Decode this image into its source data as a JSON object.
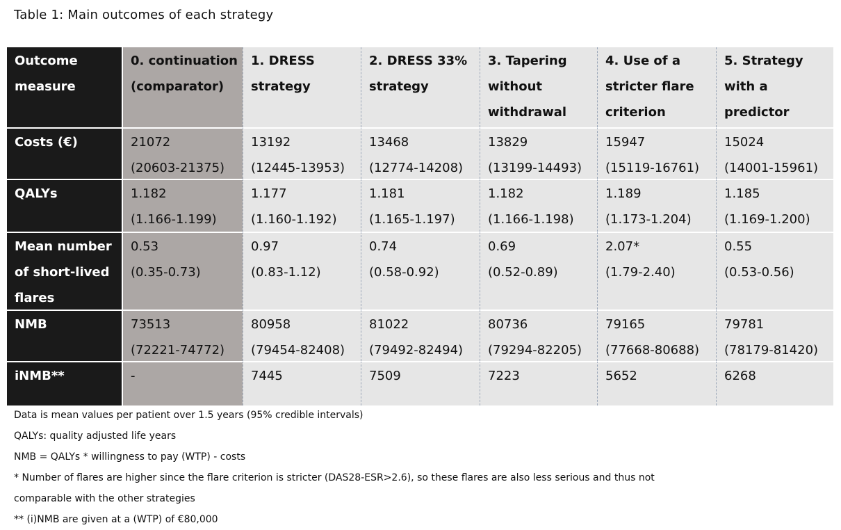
{
  "title": "Table 1: Main outcomes of each strategy",
  "table": {
    "headers": [
      "Outcome\nmeasure",
      "0. continuation\n(comparator)",
      "1. DRESS\nstrategy",
      "2. DRESS 33%\nstrategy",
      "3. Tapering\nwithout\nwithdrawal",
      "4. Use of a\nstricter flare\ncriterion",
      "5. Strategy\nwith a\npredictor"
    ],
    "rows": [
      {
        "label": "Costs (€)",
        "cells": [
          "21072\n(20603-21375)",
          "13192\n(12445-13953)",
          "13468\n(12774-14208)",
          "13829\n(13199-14493)",
          "15947\n(15119-16761)",
          "15024\n(14001-15961)"
        ]
      },
      {
        "label": "QALYs",
        "cells": [
          "1.182\n(1.166-1.199)",
          "1.177\n(1.160-1.192)",
          "1.181\n(1.165-1.197)",
          "1.182\n(1.166-1.198)",
          "1.189\n(1.173-1.204)",
          "1.185\n(1.169-1.200)"
        ]
      },
      {
        "label": "Mean number\nof short-lived\nflares",
        "cells": [
          "0.53\n(0.35-0.73)",
          "0.97\n(0.83-1.12)",
          "0.74\n(0.58-0.92)",
          "0.69\n(0.52-0.89)",
          "2.07*\n(1.79-2.40)",
          "0.55\n(0.53-0.56)"
        ]
      },
      {
        "label": "NMB",
        "cells": [
          "73513\n(72221-74772)",
          "80958\n(79454-82408)",
          "81022\n(79492-82494)",
          "80736\n(79294-82205)",
          "79165\n(77668-80688)",
          "79781\n(78179-81420)"
        ]
      },
      {
        "label": "iNMB**",
        "cells": [
          "-",
          "7445",
          "7509",
          "7223",
          "5652",
          "6268"
        ]
      }
    ]
  },
  "notes": [
    "Data is mean values per patient over 1.5 years (95% credible intervals)",
    "QALYs: quality adjusted life years",
    "NMB = QALYs * willingness to pay (WTP) - costs",
    "* Number of flares are higher since the flare criterion is stricter (DAS28-ESR>2.6), so these flares are also less serious and thus not",
    "comparable with the other strategies",
    "** (i)NMB are given at a (WTP) of €80,000"
  ],
  "colors": {
    "row_header_bg": "#1a1a1a",
    "comparator_bg": "#aca7a5",
    "cell_bg": "#e6e6e6"
  }
}
